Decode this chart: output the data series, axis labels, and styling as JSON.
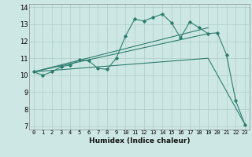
{
  "xlabel": "Humidex (Indice chaleur)",
  "bg_color": "#cde8e4",
  "grid_color": "#b0ccc8",
  "line_color": "#2d7d6e",
  "xlim": [
    -0.5,
    23.5
  ],
  "ylim": [
    6.8,
    14.2
  ],
  "xticks": [
    0,
    1,
    2,
    3,
    4,
    5,
    6,
    7,
    8,
    9,
    10,
    11,
    12,
    13,
    14,
    15,
    16,
    17,
    18,
    19,
    20,
    21,
    22,
    23
  ],
  "yticks": [
    7,
    8,
    9,
    10,
    11,
    12,
    13,
    14
  ],
  "series1_x": [
    0,
    1,
    2,
    3,
    4,
    5,
    6,
    7,
    8,
    9,
    10,
    11,
    12,
    13,
    14,
    15,
    16,
    17,
    18,
    19,
    20,
    21,
    22,
    23
  ],
  "series1_y": [
    10.2,
    10.0,
    10.2,
    10.5,
    10.6,
    10.9,
    10.85,
    10.4,
    10.35,
    11.0,
    12.3,
    13.3,
    13.2,
    13.4,
    13.6,
    13.1,
    12.2,
    13.15,
    12.8,
    12.45,
    12.5,
    11.2,
    8.5,
    7.1
  ],
  "trend1_x": [
    0,
    19
  ],
  "trend1_y": [
    10.2,
    12.8
  ],
  "trend2_x": [
    0,
    19
  ],
  "trend2_y": [
    10.2,
    12.45
  ],
  "trend3_x": [
    0,
    19,
    23
  ],
  "trend3_y": [
    10.2,
    11.0,
    7.1
  ]
}
